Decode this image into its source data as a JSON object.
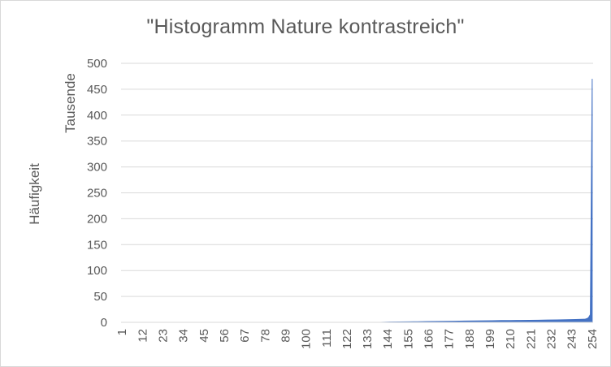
{
  "chart_data": {
    "type": "area",
    "title": "\"Histogramm Nature kontrastreich\"",
    "ylabel": "Häufigkeit",
    "yunit_label": "Tausende",
    "xlabel": "",
    "ylim": [
      0,
      500
    ],
    "y_ticks": [
      "0",
      "50",
      "100",
      "150",
      "200",
      "250",
      "300",
      "350",
      "400",
      "450",
      "500"
    ],
    "x_range": [
      1,
      254
    ],
    "x_tick_labels": [
      "1",
      "12",
      "23",
      "34",
      "45",
      "56",
      "67",
      "78",
      "89",
      "100",
      "111",
      "122",
      "133",
      "144",
      "155",
      "166",
      "177",
      "188",
      "199",
      "210",
      "221",
      "232",
      "243",
      "254"
    ],
    "grid": true,
    "legend": "none",
    "series": [
      {
        "color": "#4472c4",
        "x": [
          1,
          140,
          145,
          150,
          155,
          160,
          165,
          170,
          175,
          180,
          185,
          190,
          195,
          200,
          205,
          210,
          215,
          220,
          225,
          230,
          235,
          240,
          245,
          250,
          251,
          252,
          253,
          254
        ],
        "values": [
          0,
          0,
          0.5,
          0.8,
          1,
          1.2,
          1.5,
          1.8,
          2,
          2.2,
          2.5,
          2.8,
          3,
          3.2,
          3.5,
          3.6,
          3.8,
          4,
          4.2,
          4.5,
          4.8,
          5,
          5.5,
          6,
          7,
          9,
          15,
          470
        ]
      }
    ]
  }
}
